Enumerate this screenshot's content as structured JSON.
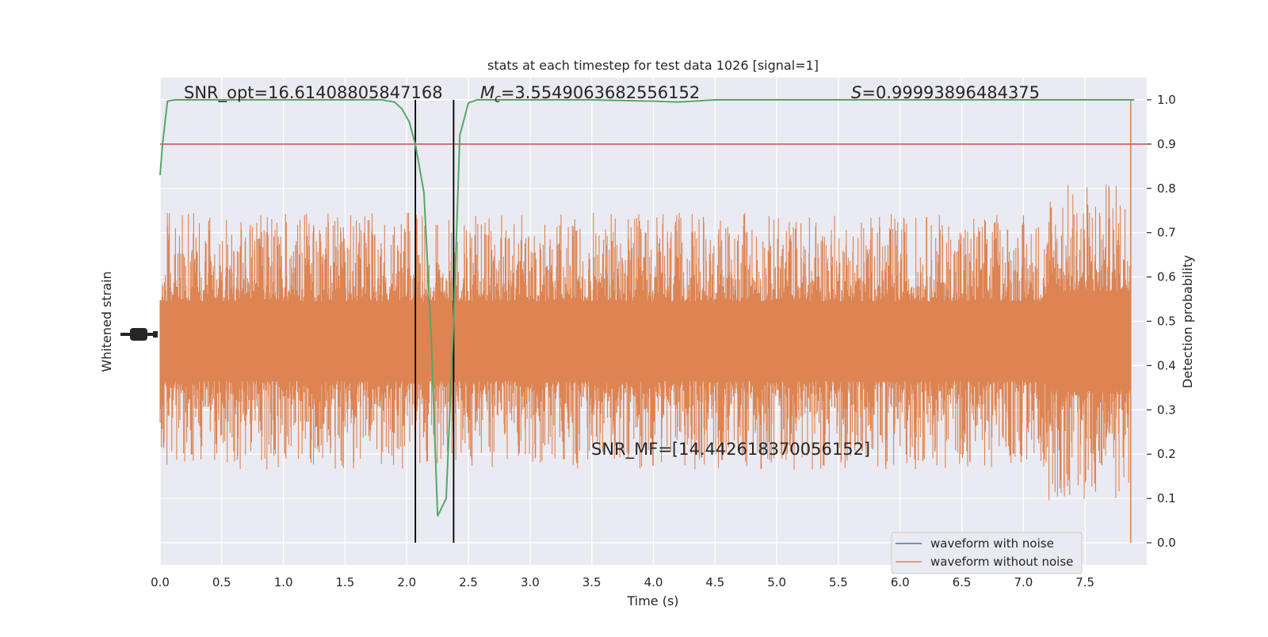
{
  "chart_data": {
    "type": "line",
    "title": "stats at each timestep for test data 1026 [signal=1]",
    "xlabel": "Time (s)",
    "ylabel_left": "Whitened strain",
    "ylabel_right": "Detection probability",
    "xlim": [
      0.0,
      8.0
    ],
    "ylim_right": [
      -0.05,
      1.05
    ],
    "x_ticks": [
      "0.0",
      "0.5",
      "1.0",
      "1.5",
      "2.0",
      "2.5",
      "3.0",
      "3.5",
      "4.0",
      "4.5",
      "5.0",
      "5.5",
      "6.0",
      "6.5",
      "7.0",
      "7.5"
    ],
    "y_ticks_right": [
      "0.0",
      "0.1",
      "0.2",
      "0.3",
      "0.4",
      "0.5",
      "0.6",
      "0.7",
      "0.8",
      "0.9",
      "1.0"
    ],
    "grid": true,
    "legend_position": "lower right",
    "legend": [
      {
        "label": "waveform with noise",
        "color": "#4c72b0"
      },
      {
        "label": "waveform without noise",
        "color": "#dd8452"
      }
    ],
    "annotations": {
      "snr_opt": "SNR_opt=16.61408805847168",
      "mc_prefix": "M",
      "mc_sub": "c",
      "mc_value": "=3.5549063682556152",
      "s_prefix": "S",
      "s_value": "=0.99993896484375",
      "snr_mf": "SNR_MF=[14.442618370056152]"
    },
    "threshold": {
      "y": 0.9,
      "color": "#c44e52"
    },
    "vertical_lines": {
      "x": [
        2.07,
        2.38
      ],
      "y_range": [
        0.0,
        1.0
      ],
      "color": "#000000"
    },
    "probability_series": {
      "name": "Detection probability",
      "color": "#55a868",
      "x": [
        0.0,
        0.02,
        0.06,
        0.12,
        0.2,
        0.5,
        1.0,
        1.5,
        1.8,
        1.9,
        1.96,
        2.02,
        2.07,
        2.14,
        2.2,
        2.25,
        2.32,
        2.38,
        2.43,
        2.5,
        2.57,
        2.62,
        3.0,
        3.5,
        4.0,
        4.2,
        4.5,
        5.0,
        6.0,
        7.0,
        7.9
      ],
      "y": [
        0.83,
        0.9,
        0.997,
        1.0,
        1.0,
        1.0,
        1.0,
        1.0,
        1.0,
        0.995,
        0.98,
        0.95,
        0.9,
        0.79,
        0.45,
        0.06,
        0.1,
        0.5,
        0.92,
        0.993,
        1.0,
        1.0,
        1.0,
        1.0,
        0.997,
        0.995,
        1.0,
        1.0,
        1.0,
        1.0,
        1.0
      ]
    },
    "strain_series": {
      "name": "waveform without noise",
      "color": "#dd8452",
      "band_center": 0.455,
      "band_half_width": 0.09,
      "typical_peak_excursion": 0.2,
      "max_spike": {
        "x": 7.87,
        "y_top": 1.0,
        "y_bottom": 0.0
      }
    }
  }
}
